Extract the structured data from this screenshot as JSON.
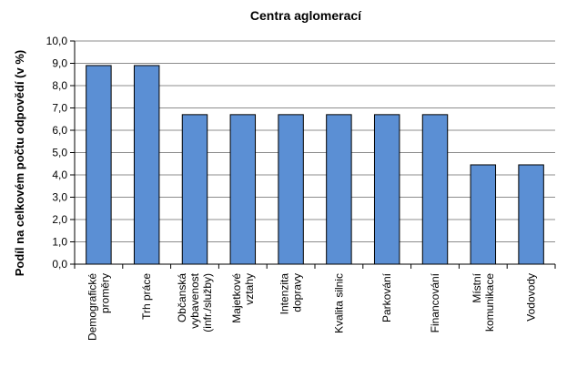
{
  "chart_data": {
    "type": "bar",
    "title": "Centra aglomerací",
    "xlabel": "",
    "ylabel": "Podíl na celkovém počtu odpovědí (v %)",
    "ylim": [
      0,
      10
    ],
    "yticks": [
      "0,0",
      "1,0",
      "2,0",
      "3,0",
      "4,0",
      "5,0",
      "6,0",
      "7,0",
      "8,0",
      "9,0",
      "10,0"
    ],
    "grid": true,
    "legend": "none",
    "categories": [
      [
        "Demografické",
        "proměry"
      ],
      [
        "Trh práce"
      ],
      [
        "Občanská",
        "vybavenost",
        "(infr./služby)"
      ],
      [
        "Majetkové",
        "vztahy"
      ],
      [
        "Intenzita",
        "dopravy"
      ],
      [
        "Kvalita silnic"
      ],
      [
        "Parkování"
      ],
      [
        "Financování"
      ],
      [
        "Místní",
        "komunikace"
      ],
      [
        "Vodovody"
      ]
    ],
    "values": [
      8.9,
      8.9,
      6.7,
      6.7,
      6.7,
      6.7,
      6.7,
      6.7,
      4.45,
      4.45
    ],
    "colors": {
      "bar": "#5b8fd4",
      "grid": "#8c8c8c"
    }
  }
}
